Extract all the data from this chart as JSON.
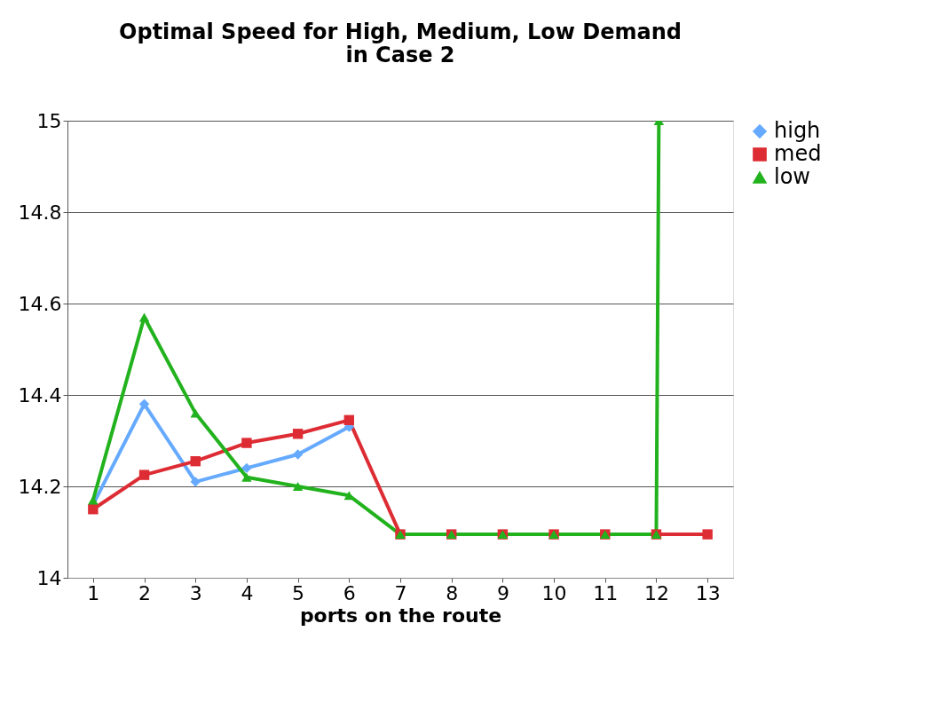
{
  "chart_data": {
    "type": "line",
    "title": "Optimal Speed for High, Medium, Low Demand\nin Case 2",
    "xlabel": "ports on the route",
    "x": [
      1,
      2,
      3,
      4,
      5,
      6,
      7,
      8,
      9,
      10,
      11,
      12,
      13
    ],
    "series": [
      {
        "name": "high",
        "color": "#66aaff",
        "marker": "diamond",
        "values": [
          14.16,
          14.38,
          14.21,
          14.24,
          14.27,
          14.33,
          null,
          null,
          null,
          null,
          null,
          null,
          null
        ]
      },
      {
        "name": "med",
        "color": "#dd2c33",
        "marker": "square",
        "values": [
          14.15,
          14.225,
          14.255,
          14.295,
          14.315,
          14.345,
          14.095,
          14.095,
          14.095,
          14.095,
          14.095,
          14.095,
          14.095
        ]
      },
      {
        "name": "low",
        "color": "#22b21d",
        "marker": "triangle",
        "x": [
          1,
          2,
          3,
          4,
          5,
          6,
          7,
          8,
          9,
          10,
          11,
          12,
          12.05
        ],
        "values": [
          14.17,
          14.57,
          14.36,
          14.22,
          14.2,
          14.18,
          14.095,
          14.095,
          14.095,
          14.095,
          14.095,
          14.095,
          15
        ]
      }
    ],
    "xlim": [
      0.5,
      13.5
    ],
    "xticks": [
      1,
      2,
      3,
      4,
      5,
      6,
      7,
      8,
      9,
      10,
      11,
      12,
      13
    ],
    "ylim": [
      14,
      15
    ],
    "yticks": [
      14,
      14.2,
      14.4,
      14.6,
      14.8,
      15
    ],
    "grid": "y",
    "legend": "right",
    "line_style": "solid"
  }
}
